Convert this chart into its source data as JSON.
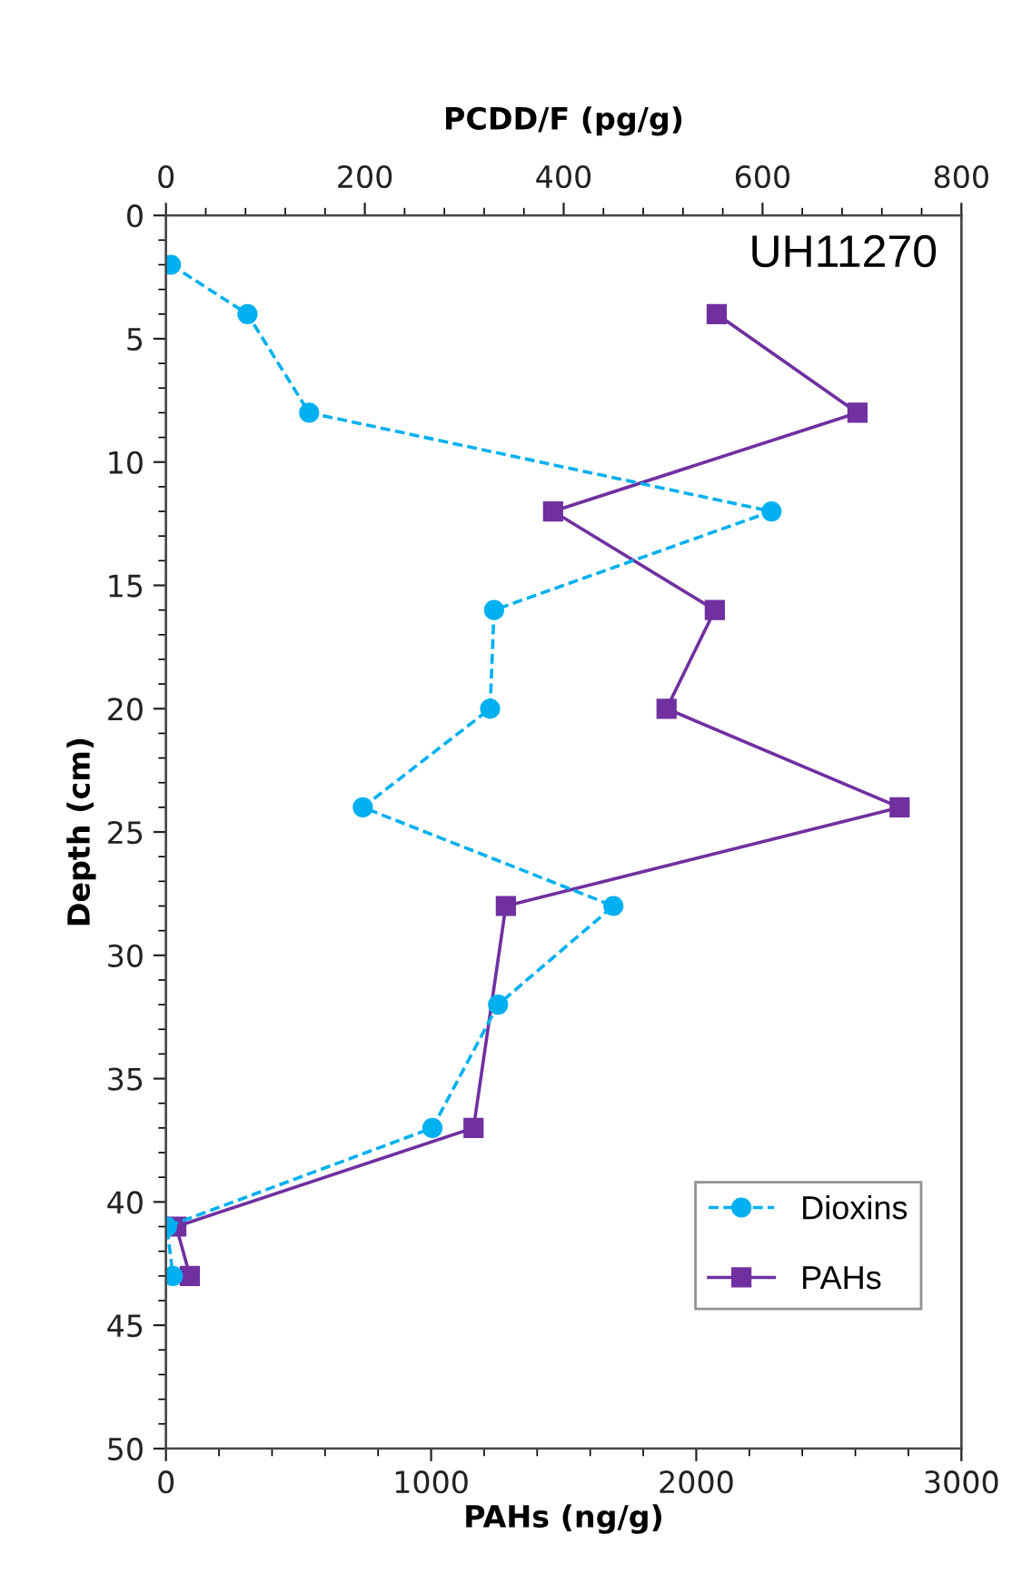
{
  "chart_data": {
    "type": "line",
    "xlabel": "PAHs (ng/g)",
    "x2label": "PCDD/F (pg/g)",
    "ylabel": "Depth (cm)",
    "annotations": [
      "UH11270"
    ],
    "xlim": [
      0,
      3000
    ],
    "xticks": [
      0,
      {
        "value": 200,
        "label": null
      },
      {
        "value": 400,
        "label": null
      },
      {
        "value": 600,
        "label": null
      },
      {
        "value": 800,
        "label": null
      },
      1000,
      {
        "value": 1200,
        "label": null
      },
      {
        "value": 1400,
        "label": null
      },
      {
        "value": 1600,
        "label": null
      },
      {
        "value": 1800,
        "label": null
      },
      2000,
      {
        "value": 2200,
        "label": null
      },
      {
        "value": 2400,
        "label": null
      },
      {
        "value": 2600,
        "label": null
      },
      {
        "value": 2800,
        "label": null
      },
      3000
    ],
    "x2lim": [
      0,
      800
    ],
    "x2ticks": [
      0,
      {
        "value": 40,
        "label": null
      },
      {
        "value": 80,
        "label": null
      },
      {
        "value": 120,
        "label": null
      },
      {
        "value": 160,
        "label": null
      },
      200,
      {
        "value": 240,
        "label": null
      },
      {
        "value": 280,
        "label": null
      },
      {
        "value": 320,
        "label": null
      },
      {
        "value": 360,
        "label": null
      },
      400,
      {
        "value": 440,
        "label": null
      },
      {
        "value": 480,
        "label": null
      },
      {
        "value": 520,
        "label": null
      },
      {
        "value": 560,
        "label": null
      },
      600,
      {
        "value": 640,
        "label": null
      },
      {
        "value": 680,
        "label": null
      },
      {
        "value": 720,
        "label": null
      },
      {
        "value": 760,
        "label": null
      },
      800
    ],
    "ylim": [
      50,
      0
    ],
    "yticks": [
      0,
      {
        "value": 1,
        "label": null
      },
      {
        "value": 2,
        "label": null
      },
      {
        "value": 3,
        "label": null
      },
      {
        "value": 4,
        "label": null
      },
      5,
      {
        "value": 6,
        "label": null
      },
      {
        "value": 7,
        "label": null
      },
      {
        "value": 8,
        "label": null
      },
      {
        "value": 9,
        "label": null
      },
      10,
      {
        "value": 11,
        "label": null
      },
      {
        "value": 12,
        "label": null
      },
      {
        "value": 13,
        "label": null
      },
      {
        "value": 14,
        "label": null
      },
      15,
      {
        "value": 16,
        "label": null
      },
      {
        "value": 17,
        "label": null
      },
      {
        "value": 18,
        "label": null
      },
      {
        "value": 19,
        "label": null
      },
      20,
      {
        "value": 21,
        "label": null
      },
      {
        "value": 22,
        "label": null
      },
      {
        "value": 23,
        "label": null
      },
      {
        "value": 24,
        "label": null
      },
      25,
      {
        "value": 26,
        "label": null
      },
      {
        "value": 27,
        "label": null
      },
      {
        "value": 28,
        "label": null
      },
      {
        "value": 29,
        "label": null
      },
      30,
      {
        "value": 31,
        "label": null
      },
      {
        "value": 32,
        "label": null
      },
      {
        "value": 33,
        "label": null
      },
      {
        "value": 34,
        "label": null
      },
      35,
      {
        "value": 36,
        "label": null
      },
      {
        "value": 37,
        "label": null
      },
      {
        "value": 38,
        "label": null
      },
      {
        "value": 39,
        "label": null
      },
      40,
      {
        "value": 41,
        "label": null
      },
      {
        "value": 42,
        "label": null
      },
      {
        "value": 43,
        "label": null
      },
      {
        "value": 44,
        "label": null
      },
      45,
      {
        "value": 46,
        "label": null
      },
      {
        "value": 47,
        "label": null
      },
      {
        "value": 48,
        "label": null
      },
      {
        "value": 49,
        "label": null
      },
      50
    ],
    "grid": false,
    "legend": "bottom right",
    "series": [
      {
        "name": "Dioxins",
        "color": "#00b0f0",
        "axis": "x2",
        "marker": "circle",
        "line_style": "dashed",
        "x": [
          5,
          82,
          144,
          609,
          330,
          326,
          198,
          450,
          334,
          268,
          1,
          7
        ],
        "values": [
          2,
          4,
          8,
          12,
          16,
          20,
          24,
          28,
          32,
          37,
          41,
          43
        ]
      },
      {
        "name": "PAHs",
        "color": "#7030a0",
        "marker": "square",
        "line_style": "solid",
        "x": [
          2077,
          2608,
          1460,
          2070,
          1888,
          2767,
          1282,
          1160,
          39,
          90
        ],
        "values": [
          4,
          8,
          12,
          16,
          20,
          24,
          28,
          37,
          41,
          43
        ]
      }
    ]
  }
}
